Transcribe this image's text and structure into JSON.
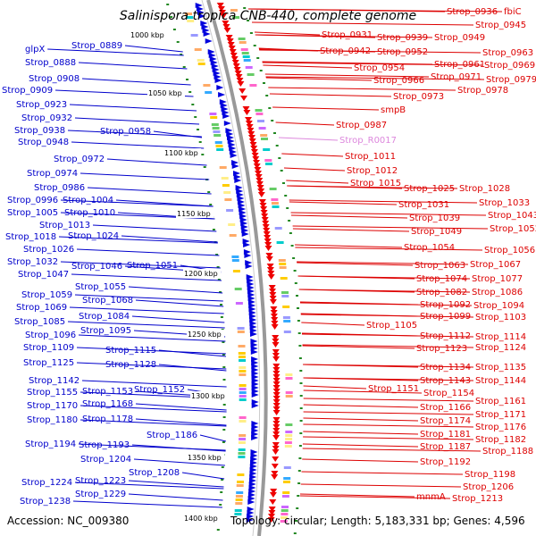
{
  "title": "Salinispora tropica CNB-440, complete genome",
  "footer": {
    "accession": "Accession: NC_009380",
    "summary": "Topology: circular; Length: 5,183,331 bp; Genes: 4,596"
  },
  "colors": {
    "left_labels": "#0000cc",
    "right_labels": "#dd0000",
    "rna_label": "#dd88dd",
    "backbone": "#999999",
    "forward_genes": "#0000dd",
    "reverse_genes": "#ee0000",
    "tick_marks": "#228822"
  },
  "kbp_markers": [
    "1000 kbp",
    "1050 kbp",
    "1100 kbp",
    "1150 kbp",
    "1200 kbp",
    "1250 kbp",
    "1300 kbp",
    "1350 kbp",
    "1400 kbp"
  ],
  "left_labels": [
    "glpX",
    "Strop_0889",
    "Strop_0888",
    "Strop_0908",
    "Strop_0909",
    "Strop_0923",
    "Strop_0932",
    "Strop_0938",
    "Strop_0958",
    "Strop_0948",
    "Strop_0972",
    "Strop_0974",
    "Strop_0986",
    "Strop_0996",
    "Strop_1004",
    "Strop_1005",
    "Strop_1010",
    "Strop_1013",
    "Strop_1018",
    "Strop_1024",
    "Strop_1026",
    "Strop_1032",
    "Strop_1046",
    "Strop_1051",
    "Strop_1047",
    "Strop_1055",
    "Strop_1059",
    "Strop_1068",
    "Strop_1069",
    "Strop_1084",
    "Strop_1085",
    "Strop_1096",
    "Strop_1095",
    "Strop_1109",
    "Strop_1115",
    "Strop_1125",
    "Strop_1128",
    "Strop_1142",
    "Strop_1155",
    "Strop_1153",
    "Strop_1152",
    "Strop_1170",
    "Strop_1168",
    "Strop_1180",
    "Strop_1178",
    "Strop_1186",
    "Strop_1194",
    "Strop_1193",
    "Strop_1204",
    "Strop_1208",
    "Strop_1224",
    "Strop_1223",
    "Strop_1229",
    "Strop_1238"
  ],
  "right_labels": [
    "Strop_0936",
    "fbiC",
    "Strop_0945",
    "Strop_0931",
    "Strop_0939",
    "Strop_0949",
    "Strop_0942",
    "Strop_0952",
    "Strop_0963",
    "Strop_0961",
    "Strop_0954",
    "Strop_0969",
    "Strop_0971",
    "Strop_0966",
    "Strop_0979",
    "Strop_0978",
    "Strop_0973",
    "smpB",
    "Strop_0987",
    "Strop_R0017",
    "Strop_1011",
    "Strop_1012",
    "Strop_1015",
    "Strop_1025",
    "Strop_1028",
    "Strop_1033",
    "Strop_1031",
    "Strop_1043",
    "Strop_1039",
    "Strop_1052",
    "Strop_1049",
    "Strop_1054",
    "Strop_1056",
    "Strop_1063",
    "Strop_1067",
    "Strop_1074",
    "Strop_1077",
    "Strop_1082",
    "Strop_1086",
    "Strop_1092",
    "Strop_1094",
    "Strop_1099",
    "Strop_1103",
    "Strop_1105",
    "Strop_1112",
    "Strop_1114",
    "Strop_1123",
    "Strop_1124",
    "Strop_1134",
    "Strop_1135",
    "Strop_1143",
    "Strop_1144",
    "Strop_1151",
    "Strop_1154",
    "Strop_1161",
    "Strop_1166",
    "Strop_1171",
    "Strop_1174",
    "Strop_1176",
    "Strop_1181",
    "Strop_1182",
    "Strop_1187",
    "Strop_1188",
    "Strop_1192",
    "Strop_1198",
    "Strop_1206",
    "mnmA",
    "Strop_1213"
  ]
}
